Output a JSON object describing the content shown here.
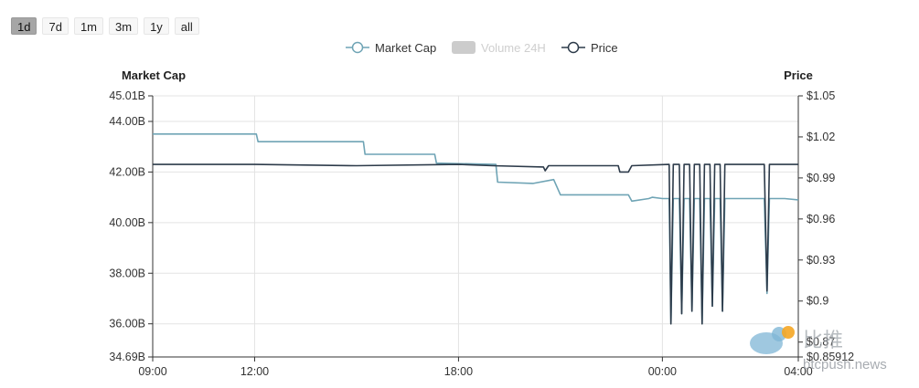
{
  "range_buttons": [
    {
      "label": "1d",
      "active": true
    },
    {
      "label": "7d",
      "active": false
    },
    {
      "label": "1m",
      "active": false
    },
    {
      "label": "3m",
      "active": false
    },
    {
      "label": "1y",
      "active": false
    },
    {
      "label": "all",
      "active": false
    }
  ],
  "colors": {
    "market_cap": "#6fa4b5",
    "price": "#2d3b4a",
    "volume_off": "#cccccc",
    "grid": "#e3e3e3",
    "axis": "#333333"
  },
  "watermark": {
    "text": "比推",
    "url": "btcpush.news"
  },
  "chart_data": {
    "type": "line",
    "legend": [
      {
        "name": "Market Cap",
        "enabled": true
      },
      {
        "name": "Volume 24H",
        "enabled": false
      },
      {
        "name": "Price",
        "enabled": true
      }
    ],
    "legend_position": "top-center",
    "grid": true,
    "x_ticks": [
      "09:00",
      "12:00",
      "18:00",
      "00:00",
      "04:00"
    ],
    "x_tick_hours": [
      0,
      3,
      9,
      15,
      19
    ],
    "x_range_hours": [
      0,
      19
    ],
    "left_axis": {
      "label": "Market Cap",
      "ticks": [
        "45.01B",
        "44.00B",
        "42.00B",
        "40.00B",
        "38.00B",
        "36.00B",
        "34.69B"
      ],
      "tick_values": [
        45.01,
        44.0,
        42.0,
        40.0,
        38.0,
        36.0,
        34.69
      ],
      "range": [
        34.69,
        45.01
      ]
    },
    "right_axis": {
      "label": "Price",
      "ticks": [
        "$1.05",
        "$1.02",
        "$0.99",
        "$0.96",
        "$0.93",
        "$0.9",
        "$0.87",
        "$0.85912"
      ],
      "tick_values": [
        1.05,
        1.02,
        0.99,
        0.96,
        0.93,
        0.9,
        0.87,
        0.85912
      ],
      "range": [
        0.85912,
        1.05
      ]
    },
    "series": [
      {
        "name": "Market Cap",
        "axis": "left",
        "points": [
          [
            0,
            43.5
          ],
          [
            3.05,
            43.5
          ],
          [
            3.1,
            43.2
          ],
          [
            6.2,
            43.2
          ],
          [
            6.25,
            42.7
          ],
          [
            8.3,
            42.7
          ],
          [
            8.35,
            42.35
          ],
          [
            10.1,
            42.3
          ],
          [
            10.15,
            41.6
          ],
          [
            11.2,
            41.55
          ],
          [
            11.8,
            41.7
          ],
          [
            12.0,
            41.1
          ],
          [
            14.0,
            41.1
          ],
          [
            14.1,
            40.85
          ],
          [
            14.6,
            40.95
          ],
          [
            14.7,
            41.0
          ],
          [
            15.0,
            40.95
          ],
          [
            15.2,
            40.95
          ],
          [
            15.25,
            36.0
          ],
          [
            15.32,
            40.95
          ],
          [
            15.5,
            40.95
          ],
          [
            15.57,
            36.4
          ],
          [
            15.64,
            40.95
          ],
          [
            15.8,
            40.95
          ],
          [
            15.87,
            36.5
          ],
          [
            15.94,
            40.95
          ],
          [
            16.1,
            40.95
          ],
          [
            16.17,
            36.0
          ],
          [
            16.24,
            40.95
          ],
          [
            16.4,
            40.95
          ],
          [
            16.47,
            36.7
          ],
          [
            16.54,
            40.95
          ],
          [
            16.7,
            40.95
          ],
          [
            16.77,
            36.5
          ],
          [
            16.84,
            40.95
          ],
          [
            18.0,
            40.95
          ],
          [
            18.08,
            37.2
          ],
          [
            18.15,
            40.95
          ],
          [
            18.6,
            40.95
          ],
          [
            19.0,
            40.9
          ]
        ]
      },
      {
        "name": "Price",
        "axis": "left",
        "points": [
          [
            0,
            42.3
          ],
          [
            3.0,
            42.3
          ],
          [
            6.0,
            42.25
          ],
          [
            9.0,
            42.3
          ],
          [
            10.0,
            42.25
          ],
          [
            11.5,
            42.2
          ],
          [
            11.55,
            42.05
          ],
          [
            11.65,
            42.25
          ],
          [
            13.7,
            42.25
          ],
          [
            13.75,
            42.0
          ],
          [
            14.0,
            42.0
          ],
          [
            14.1,
            42.25
          ],
          [
            15.2,
            42.3
          ],
          [
            15.25,
            36.0
          ],
          [
            15.32,
            42.3
          ],
          [
            15.5,
            42.3
          ],
          [
            15.57,
            36.4
          ],
          [
            15.64,
            42.3
          ],
          [
            15.8,
            42.3
          ],
          [
            15.87,
            36.5
          ],
          [
            15.94,
            42.3
          ],
          [
            16.1,
            42.3
          ],
          [
            16.17,
            36.0
          ],
          [
            16.24,
            42.3
          ],
          [
            16.4,
            42.3
          ],
          [
            16.47,
            36.7
          ],
          [
            16.54,
            42.3
          ],
          [
            16.7,
            42.3
          ],
          [
            16.77,
            36.5
          ],
          [
            16.84,
            42.3
          ],
          [
            18.0,
            42.3
          ],
          [
            18.08,
            37.3
          ],
          [
            18.15,
            42.3
          ],
          [
            19.0,
            42.3
          ]
        ]
      }
    ]
  }
}
